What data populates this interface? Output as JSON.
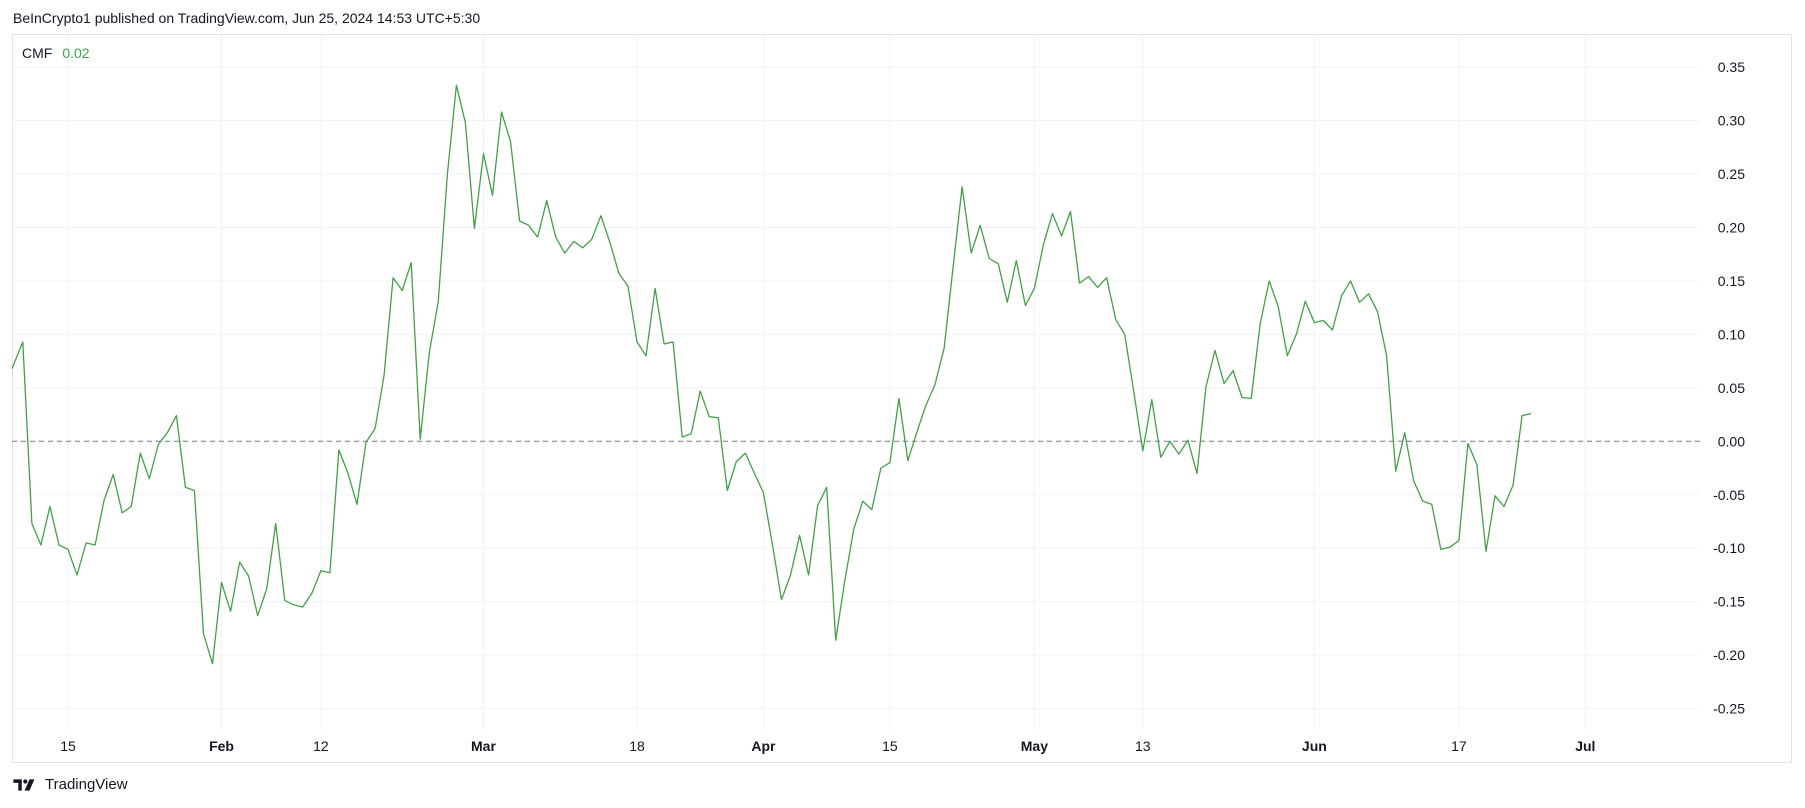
{
  "header": {
    "text": "BeInCrypto1 published on TradingView.com, Jun 25, 2024 14:53 UTC+5:30"
  },
  "legend": {
    "name": "CMF",
    "value": "0.02",
    "color": "#43a047"
  },
  "footer": {
    "brand": "TradingView"
  },
  "colors": {
    "line": "#43a047",
    "grid": "#f0f3fa",
    "zero": "#787b86",
    "text": "#131722"
  },
  "chart_data": {
    "type": "line",
    "title": "",
    "xlabel": "",
    "ylabel": "",
    "ylim": [
      -0.27,
      0.38
    ],
    "y_ticks": [
      "0.35",
      "0.30",
      "0.25",
      "0.20",
      "0.15",
      "0.10",
      "0.05",
      "0.00",
      "-0.05",
      "-0.10",
      "-0.15",
      "-0.20",
      "-0.25"
    ],
    "x_ticks": [
      {
        "label": "15",
        "day": 15,
        "bold": false
      },
      {
        "label": "Feb",
        "day": 32,
        "bold": true
      },
      {
        "label": "12",
        "day": 43,
        "bold": false
      },
      {
        "label": "Mar",
        "day": 61,
        "bold": true
      },
      {
        "label": "18",
        "day": 78,
        "bold": false
      },
      {
        "label": "Apr",
        "day": 92,
        "bold": true
      },
      {
        "label": "15",
        "day": 106,
        "bold": false
      },
      {
        "label": "May",
        "day": 122,
        "bold": true
      },
      {
        "label": "13",
        "day": 134,
        "bold": false
      },
      {
        "label": "Jun",
        "day": 153,
        "bold": true
      },
      {
        "label": "17",
        "day": 169,
        "bold": false
      },
      {
        "label": "Jul",
        "day": 183,
        "bold": true
      }
    ],
    "xlim": [
      8.8,
      188.5
    ],
    "grid": true,
    "zero_line": 0,
    "series": [
      {
        "name": "CMF",
        "color": "#43a047",
        "points": [
          [
            8.8,
            0.068
          ],
          [
            10,
            0.093
          ],
          [
            11,
            -0.077
          ],
          [
            12,
            -0.097
          ],
          [
            13,
            -0.061
          ],
          [
            14,
            -0.097
          ],
          [
            15,
            -0.101
          ],
          [
            16,
            -0.125
          ],
          [
            17,
            -0.095
          ],
          [
            18,
            -0.097
          ],
          [
            19,
            -0.055
          ],
          [
            20,
            -0.031
          ],
          [
            21,
            -0.067
          ],
          [
            22,
            -0.061
          ],
          [
            23,
            -0.011
          ],
          [
            24,
            -0.035
          ],
          [
            25,
            -0.003
          ],
          [
            26,
            0.008
          ],
          [
            27,
            0.024
          ],
          [
            28,
            -0.043
          ],
          [
            29,
            -0.046
          ],
          [
            30,
            -0.18
          ],
          [
            31,
            -0.208
          ],
          [
            32,
            -0.132
          ],
          [
            33,
            -0.159
          ],
          [
            34,
            -0.113
          ],
          [
            35,
            -0.126
          ],
          [
            36,
            -0.163
          ],
          [
            37,
            -0.138
          ],
          [
            38,
            -0.077
          ],
          [
            39,
            -0.149
          ],
          [
            40,
            -0.153
          ],
          [
            41,
            -0.155
          ],
          [
            42,
            -0.142
          ],
          [
            43,
            -0.121
          ],
          [
            44,
            -0.123
          ],
          [
            45,
            -0.008
          ],
          [
            46,
            -0.03
          ],
          [
            47,
            -0.059
          ],
          [
            48,
            -0.001
          ],
          [
            49,
            0.012
          ],
          [
            50,
            0.062
          ],
          [
            51,
            0.153
          ],
          [
            52,
            0.141
          ],
          [
            53,
            0.167
          ],
          [
            54,
            0.002
          ],
          [
            55,
            0.083
          ],
          [
            56,
            0.131
          ],
          [
            57,
            0.249
          ],
          [
            58,
            0.333
          ],
          [
            59,
            0.298
          ],
          [
            60,
            0.199
          ],
          [
            61,
            0.269
          ],
          [
            62,
            0.23
          ],
          [
            63,
            0.308
          ],
          [
            64,
            0.28
          ],
          [
            65,
            0.206
          ],
          [
            66,
            0.202
          ],
          [
            67,
            0.191
          ],
          [
            68,
            0.225
          ],
          [
            69,
            0.191
          ],
          [
            70,
            0.176
          ],
          [
            71,
            0.187
          ],
          [
            72,
            0.181
          ],
          [
            73,
            0.189
          ],
          [
            74,
            0.211
          ],
          [
            75,
            0.186
          ],
          [
            76,
            0.157
          ],
          [
            77,
            0.145
          ],
          [
            78,
            0.093
          ],
          [
            79,
            0.08
          ],
          [
            80,
            0.143
          ],
          [
            81,
            0.091
          ],
          [
            82,
            0.093
          ],
          [
            83,
            0.004
          ],
          [
            84,
            0.007
          ],
          [
            85,
            0.047
          ],
          [
            86,
            0.023
          ],
          [
            87,
            0.022
          ],
          [
            88,
            -0.046
          ],
          [
            89,
            -0.019
          ],
          [
            90,
            -0.011
          ],
          [
            91,
            -0.03
          ],
          [
            92,
            -0.048
          ],
          [
            93,
            -0.097
          ],
          [
            94,
            -0.148
          ],
          [
            95,
            -0.125
          ],
          [
            96,
            -0.088
          ],
          [
            97,
            -0.125
          ],
          [
            98,
            -0.06
          ],
          [
            99,
            -0.043
          ],
          [
            100,
            -0.186
          ],
          [
            101,
            -0.131
          ],
          [
            102,
            -0.082
          ],
          [
            103,
            -0.056
          ],
          [
            104,
            -0.064
          ],
          [
            105,
            -0.025
          ],
          [
            106,
            -0.02
          ],
          [
            107,
            0.04
          ],
          [
            108,
            -0.018
          ],
          [
            109,
            0.009
          ],
          [
            110,
            0.034
          ],
          [
            111,
            0.053
          ],
          [
            112,
            0.087
          ],
          [
            113,
            0.163
          ],
          [
            114,
            0.238
          ],
          [
            115,
            0.176
          ],
          [
            116,
            0.202
          ],
          [
            117,
            0.171
          ],
          [
            118,
            0.166
          ],
          [
            119,
            0.13
          ],
          [
            120,
            0.169
          ],
          [
            121,
            0.127
          ],
          [
            122,
            0.143
          ],
          [
            123,
            0.184
          ],
          [
            124,
            0.213
          ],
          [
            125,
            0.192
          ],
          [
            126,
            0.215
          ],
          [
            127,
            0.148
          ],
          [
            128,
            0.154
          ],
          [
            129,
            0.144
          ],
          [
            130,
            0.153
          ],
          [
            131,
            0.114
          ],
          [
            132,
            0.1
          ],
          [
            133,
            0.047
          ],
          [
            134,
            -0.009
          ],
          [
            135,
            0.039
          ],
          [
            136,
            -0.015
          ],
          [
            137,
            0.0
          ],
          [
            138,
            -0.012
          ],
          [
            139,
            0.001
          ],
          [
            140,
            -0.03
          ],
          [
            141,
            0.051
          ],
          [
            142,
            0.085
          ],
          [
            143,
            0.054
          ],
          [
            144,
            0.066
          ],
          [
            145,
            0.041
          ],
          [
            146,
            0.04
          ],
          [
            147,
            0.11
          ],
          [
            148,
            0.15
          ],
          [
            149,
            0.126
          ],
          [
            150,
            0.08
          ],
          [
            151,
            0.1
          ],
          [
            152,
            0.131
          ],
          [
            153,
            0.111
          ],
          [
            154,
            0.113
          ],
          [
            155,
            0.104
          ],
          [
            156,
            0.136
          ],
          [
            157,
            0.15
          ],
          [
            158,
            0.13
          ],
          [
            159,
            0.138
          ],
          [
            160,
            0.121
          ],
          [
            161,
            0.08
          ],
          [
            162,
            -0.028
          ],
          [
            163,
            0.008
          ],
          [
            164,
            -0.037
          ],
          [
            165,
            -0.056
          ],
          [
            166,
            -0.059
          ],
          [
            167,
            -0.101
          ],
          [
            168,
            -0.099
          ],
          [
            169,
            -0.093
          ],
          [
            170,
            -0.002
          ],
          [
            171,
            -0.022
          ],
          [
            172,
            -0.103
          ],
          [
            173,
            -0.051
          ],
          [
            174,
            -0.061
          ],
          [
            175,
            -0.041
          ],
          [
            176,
            0.024
          ],
          [
            177,
            0.026
          ]
        ]
      }
    ]
  }
}
